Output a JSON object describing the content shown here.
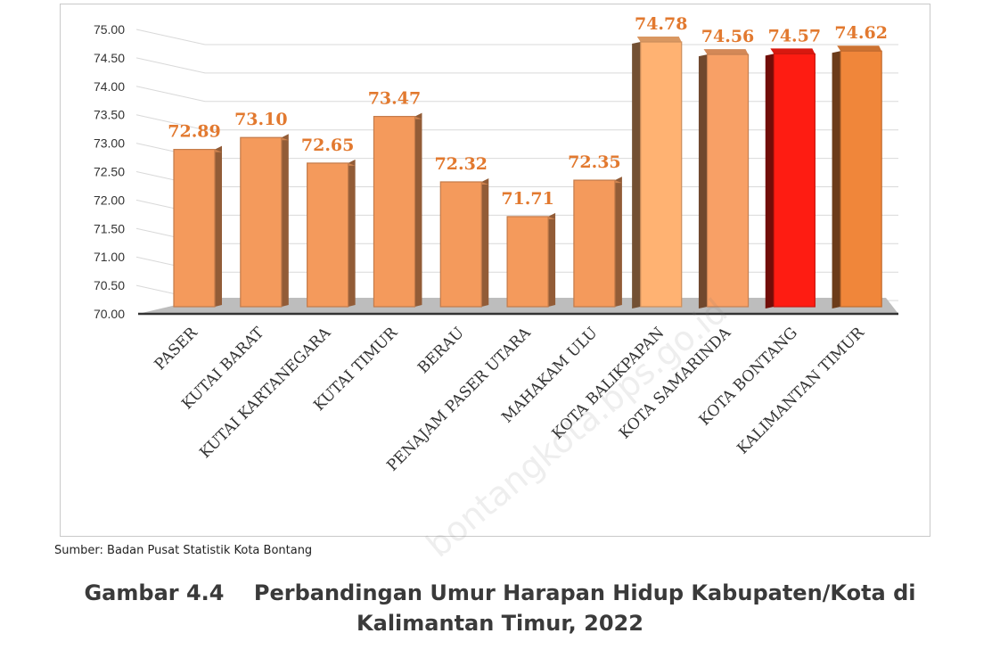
{
  "chart_data": {
    "type": "bar",
    "categories": [
      "PASER",
      "KUTAI BARAT",
      "KUTAI KARTANEGARA",
      "KUTAI TIMUR",
      "BERAU",
      "PENAJAM PASER UTARA",
      "MAHAKAM ULU",
      "KOTA BALIKPAPAN",
      "KOTA SAMARINDA",
      "KOTA BONTANG",
      "KALIMANTAN TIMUR"
    ],
    "values": [
      72.89,
      73.1,
      72.65,
      73.47,
      72.32,
      71.71,
      72.35,
      74.78,
      74.56,
      74.57,
      74.62
    ],
    "value_labels": [
      "72.89",
      "73.10",
      "72.65",
      "73.47",
      "72.32",
      "71.71",
      "72.35",
      "74.78",
      "74.56",
      "74.57",
      "74.62"
    ],
    "yticks": [
      "70.00",
      "70.50",
      "71.00",
      "71.50",
      "72.00",
      "72.50",
      "73.00",
      "73.50",
      "74.00",
      "74.50",
      "75.00"
    ],
    "ylim": [
      70,
      75
    ],
    "grid": true,
    "bar_colors": [
      "#f49a5c",
      "#f49a5c",
      "#f49a5c",
      "#f49a5c",
      "#f49a5c",
      "#f49a5c",
      "#f49a5c",
      "#ffb272",
      "#f8a066",
      "#fe1c12",
      "#f0863a"
    ],
    "label_color": "#e2792f"
  },
  "source": "Sumber: Badan Pusat Statistik Kota Bontang",
  "caption": {
    "line1": "Gambar 4.4    Perbandingan Umur Harapan Hidup Kabupaten/Kota di",
    "line2": "Kalimantan Timur, 2022"
  },
  "watermark": "bontangkota.bps.go.id"
}
